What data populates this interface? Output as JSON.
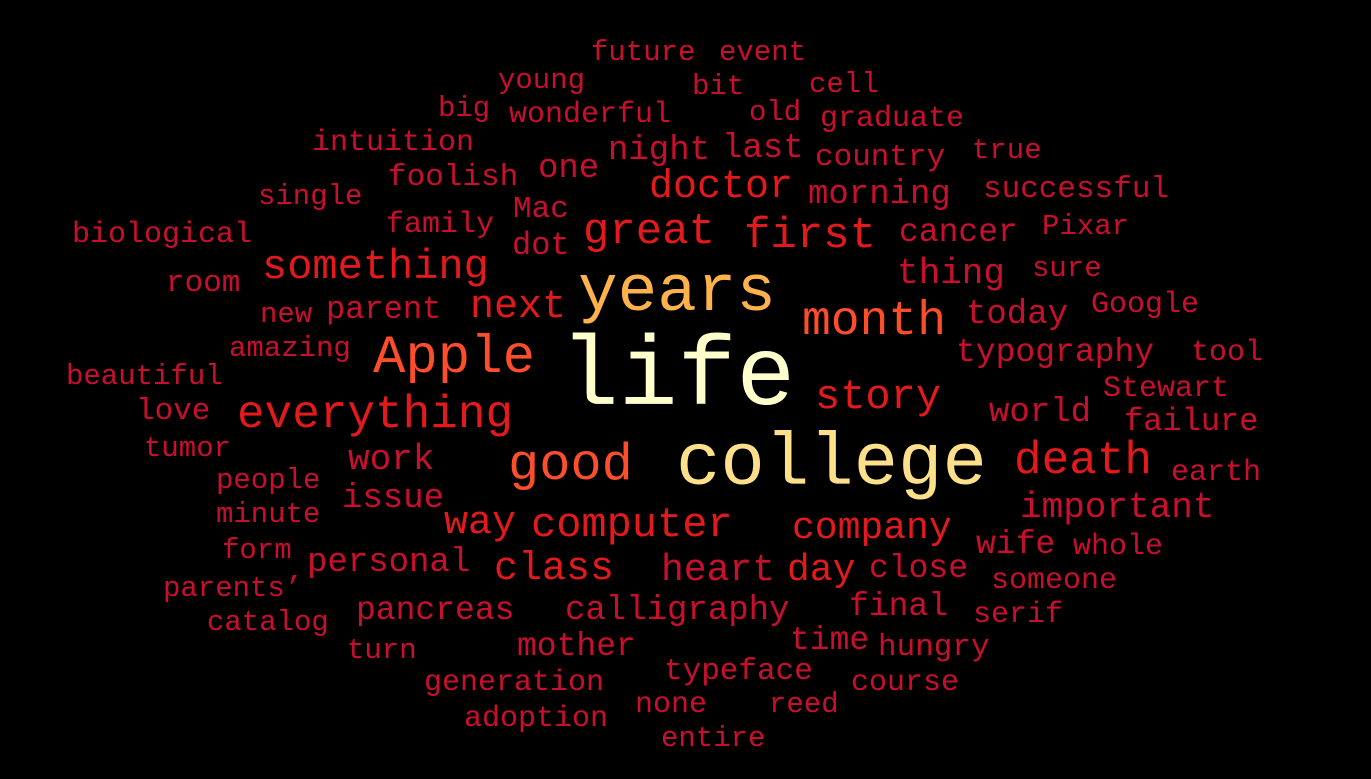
{
  "background": "#000000",
  "words": [
    {
      "text": "life",
      "weight": 1.0,
      "color": "#FFFFCC"
    },
    {
      "text": "college",
      "weight": 0.88,
      "color": "#FFE08A"
    },
    {
      "text": "years",
      "weight": 0.8,
      "color": "#FEB24C"
    },
    {
      "text": "Apple",
      "weight": 0.65,
      "color": "#FC4E2A"
    },
    {
      "text": "good",
      "weight": 0.6,
      "color": "#FC4E2A"
    },
    {
      "text": "month",
      "weight": 0.58,
      "color": "#FC4E2A"
    },
    {
      "text": "death",
      "weight": 0.52,
      "color": "#E31A1C"
    },
    {
      "text": "everything",
      "weight": 0.5,
      "color": "#E31A1C"
    },
    {
      "text": "great",
      "weight": 0.5,
      "color": "#E31A1C"
    },
    {
      "text": "first",
      "weight": 0.5,
      "color": "#E31A1C"
    },
    {
      "text": "something",
      "weight": 0.48,
      "color": "#E31A1C"
    },
    {
      "text": "computer",
      "weight": 0.48,
      "color": "#E31A1C"
    },
    {
      "text": "story",
      "weight": 0.45,
      "color": "#E31A1C"
    },
    {
      "text": "doctor",
      "weight": 0.42,
      "color": "#E31A1C"
    },
    {
      "text": "next",
      "weight": 0.42,
      "color": "#E31A1C"
    },
    {
      "text": "way",
      "weight": 0.42,
      "color": "#E31A1C"
    },
    {
      "text": "class",
      "weight": 0.42,
      "color": "#E31A1C"
    },
    {
      "text": "company",
      "weight": 0.4,
      "color": "#E31A1C"
    },
    {
      "text": "day",
      "weight": 0.4,
      "color": "#E31A1C"
    },
    {
      "text": "heart",
      "weight": 0.4,
      "color": "#C8102E"
    },
    {
      "text": "important",
      "weight": 0.38,
      "color": "#C8102E"
    },
    {
      "text": "work",
      "weight": 0.38,
      "color": "#C8102E"
    },
    {
      "text": "thing",
      "weight": 0.38,
      "color": "#C8102E"
    },
    {
      "text": "morning",
      "weight": 0.36,
      "color": "#C8102E"
    },
    {
      "text": "calligraphy",
      "weight": 0.36,
      "color": "#C8102E"
    },
    {
      "text": "world",
      "weight": 0.36,
      "color": "#C8102E"
    },
    {
      "text": "today",
      "weight": 0.36,
      "color": "#C8102E"
    },
    {
      "text": "personal",
      "weight": 0.36,
      "color": "#C8102E"
    },
    {
      "text": "one",
      "weight": 0.35,
      "color": "#C8102E"
    },
    {
      "text": "night",
      "weight": 0.35,
      "color": "#C8102E"
    },
    {
      "text": "last",
      "weight": 0.35,
      "color": "#C8102E"
    },
    {
      "text": "issue",
      "weight": 0.35,
      "color": "#C8102E"
    },
    {
      "text": "typography",
      "weight": 0.34,
      "color": "#C8102E"
    },
    {
      "text": "cancer",
      "weight": 0.34,
      "color": "#C8102E"
    },
    {
      "text": "final",
      "weight": 0.34,
      "color": "#C8102E"
    },
    {
      "text": "close",
      "weight": 0.34,
      "color": "#C8102E"
    },
    {
      "text": "wife",
      "weight": 0.34,
      "color": "#C8102E"
    },
    {
      "text": "pancreas",
      "weight": 0.34,
      "color": "#C8102E"
    },
    {
      "text": "time",
      "weight": 0.34,
      "color": "#C8102E"
    },
    {
      "text": "mother",
      "weight": 0.34,
      "color": "#C8102E"
    },
    {
      "text": "failure",
      "weight": 0.33,
      "color": "#C8102E"
    },
    {
      "text": "parent",
      "weight": 0.33,
      "color": "#C8102E"
    },
    {
      "text": "dot",
      "weight": 0.33,
      "color": "#C8102E"
    },
    {
      "text": "successful",
      "weight": 0.32,
      "color": "#C8102E"
    },
    {
      "text": "country",
      "weight": 0.32,
      "color": "#C8102E"
    },
    {
      "text": "foolish",
      "weight": 0.32,
      "color": "#C8102E"
    },
    {
      "text": "Mac",
      "weight": 0.32,
      "color": "#C8102E"
    },
    {
      "text": "room",
      "weight": 0.32,
      "color": "#C8102E"
    },
    {
      "text": "love",
      "weight": 0.32,
      "color": "#C8102E"
    },
    {
      "text": "hungry",
      "weight": 0.32,
      "color": "#C8102E"
    },
    {
      "text": "typeface",
      "weight": 0.32,
      "color": "#C8102E"
    },
    {
      "text": "wonderful",
      "weight": 0.31,
      "color": "#C8102E"
    },
    {
      "text": "intuition",
      "weight": 0.31,
      "color": "#C8102E"
    },
    {
      "text": "graduate",
      "weight": 0.31,
      "color": "#C8102E"
    },
    {
      "text": "family",
      "weight": 0.31,
      "color": "#C8102E"
    },
    {
      "text": "biological",
      "weight": 0.31,
      "color": "#C8102E"
    },
    {
      "text": "Google",
      "weight": 0.31,
      "color": "#C8102E"
    },
    {
      "text": "tool",
      "weight": 0.31,
      "color": "#C8102E"
    },
    {
      "text": "Stewart",
      "weight": 0.31,
      "color": "#C8102E"
    },
    {
      "text": "earth",
      "weight": 0.31,
      "color": "#C8102E"
    },
    {
      "text": "whole",
      "weight": 0.31,
      "color": "#C8102E"
    },
    {
      "text": "someone",
      "weight": 0.31,
      "color": "#C8102E"
    },
    {
      "text": "serif",
      "weight": 0.31,
      "color": "#C8102E"
    },
    {
      "text": "course",
      "weight": 0.31,
      "color": "#C8102E"
    },
    {
      "text": "generation",
      "weight": 0.31,
      "color": "#C8102E"
    },
    {
      "text": "adoption",
      "weight": 0.31,
      "color": "#C8102E"
    },
    {
      "text": "none",
      "weight": 0.31,
      "color": "#C8102E"
    },
    {
      "text": "future",
      "weight": 0.3,
      "color": "#C8102E"
    },
    {
      "text": "event",
      "weight": 0.3,
      "color": "#C8102E"
    },
    {
      "text": "young",
      "weight": 0.3,
      "color": "#C8102E"
    },
    {
      "text": "bit",
      "weight": 0.3,
      "color": "#C8102E"
    },
    {
      "text": "cell",
      "weight": 0.3,
      "color": "#C8102E"
    },
    {
      "text": "big",
      "weight": 0.3,
      "color": "#C8102E"
    },
    {
      "text": "old",
      "weight": 0.3,
      "color": "#C8102E"
    },
    {
      "text": "true",
      "weight": 0.3,
      "color": "#C8102E"
    },
    {
      "text": "single",
      "weight": 0.3,
      "color": "#C8102E"
    },
    {
      "text": "Pixar",
      "weight": 0.3,
      "color": "#C8102E"
    },
    {
      "text": "sure",
      "weight": 0.3,
      "color": "#C8102E"
    },
    {
      "text": "new",
      "weight": 0.3,
      "color": "#C8102E"
    },
    {
      "text": "amazing",
      "weight": 0.3,
      "color": "#C8102E"
    },
    {
      "text": "beautiful",
      "weight": 0.3,
      "color": "#C8102E"
    },
    {
      "text": "tumor",
      "weight": 0.3,
      "color": "#C8102E"
    },
    {
      "text": "people",
      "weight": 0.3,
      "color": "#C8102E"
    },
    {
      "text": "minute",
      "weight": 0.3,
      "color": "#C8102E"
    },
    {
      "text": "form",
      "weight": 0.3,
      "color": "#C8102E"
    },
    {
      "text": "parents’",
      "weight": 0.3,
      "color": "#C8102E"
    },
    {
      "text": "catalog",
      "weight": 0.3,
      "color": "#C8102E"
    },
    {
      "text": "turn",
      "weight": 0.3,
      "color": "#C8102E"
    },
    {
      "text": "reed",
      "weight": 0.3,
      "color": "#C8102E"
    },
    {
      "text": "entire",
      "weight": 0.3,
      "color": "#C8102E"
    }
  ]
}
